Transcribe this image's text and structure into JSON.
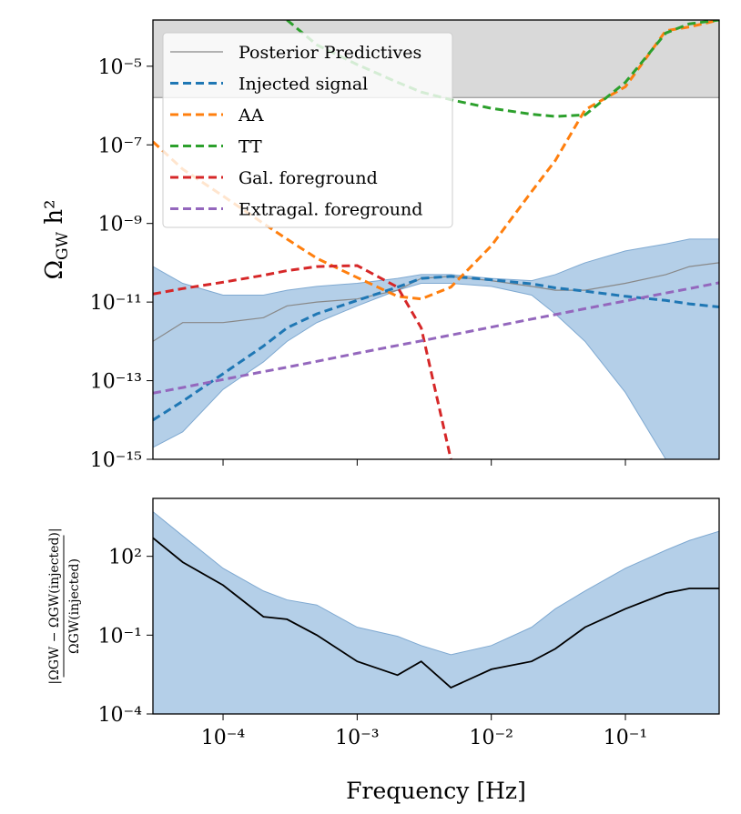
{
  "chart_data": [
    {
      "type": "line",
      "ylabel": [
        "Ω",
        "GW",
        " h²"
      ],
      "xscale": "log",
      "yscale": "log",
      "xlim": [
        3e-05,
        0.5
      ],
      "ylim": [
        1e-15,
        0.00015
      ],
      "xticks": [
        {
          "value": 0.0001,
          "label": "10⁻⁴"
        },
        {
          "value": 0.001,
          "label": "10⁻³"
        },
        {
          "value": 0.01,
          "label": "10⁻²"
        },
        {
          "value": 0.1,
          "label": "10⁻¹"
        }
      ],
      "yticks": [
        {
          "value": 1e-15,
          "label": "10⁻¹⁵"
        },
        {
          "value": 1e-13,
          "label": "10⁻¹³"
        },
        {
          "value": 1e-11,
          "label": "10⁻¹¹"
        },
        {
          "value": 1e-09,
          "label": "10⁻⁹"
        },
        {
          "value": 1e-07,
          "label": "10⁻⁷"
        },
        {
          "value": 1e-05,
          "label": "10⁻⁵"
        }
      ],
      "legend": "upper left",
      "shaded_region": {
        "lower": 1.6e-06,
        "color": "#d9d9d9"
      },
      "x": [
        3e-05,
        5e-05,
        0.0001,
        0.0002,
        0.0003,
        0.0005,
        0.001,
        0.002,
        0.003,
        0.005,
        0.01,
        0.02,
        0.03,
        0.05,
        0.1,
        0.2,
        0.3,
        0.5
      ],
      "band": {
        "color": "#b4cfe8",
        "upper": [
          8e-11,
          3e-11,
          1.5e-11,
          1.5e-11,
          2e-11,
          2.5e-11,
          3e-11,
          4e-11,
          5e-11,
          5e-11,
          4e-11,
          3.5e-11,
          5e-11,
          1e-10,
          2e-10,
          3e-10,
          4e-10,
          4e-10
        ],
        "lower": [
          2e-15,
          5e-15,
          6e-14,
          3e-13,
          1e-12,
          3e-12,
          8e-12,
          2e-11,
          3e-11,
          3e-11,
          2.5e-11,
          1.5e-11,
          5e-12,
          1e-12,
          5e-14,
          1e-15,
          1e-15,
          1e-15
        ]
      },
      "series": [
        {
          "name": "Posterior Predictives",
          "color": "#888888",
          "dashed": false,
          "values": [
            1e-12,
            3e-12,
            3e-12,
            4e-12,
            8e-12,
            1e-11,
            1.2e-11,
            2e-11,
            4e-11,
            4.5e-11,
            3.5e-11,
            2.5e-11,
            2e-11,
            2e-11,
            3e-11,
            5e-11,
            8e-11,
            1e-10
          ]
        },
        {
          "name": "Injected signal",
          "color": "#1f77b4",
          "dashed": true,
          "values": [
            1e-14,
            3e-14,
            1.5e-13,
            7.6e-13,
            2.2e-12,
            5e-12,
            1.1e-11,
            2.4e-11,
            4e-11,
            4.5e-11,
            3.7e-11,
            2.9e-11,
            2.3e-11,
            1.9e-11,
            1.4e-11,
            1.1e-11,
            9e-12,
            7.5e-12
          ]
        },
        {
          "name": "AA",
          "color": "#ff7f0e",
          "dashed": true,
          "values": [
            1.2e-07,
            2.4e-08,
            5e-09,
            1e-09,
            4e-10,
            1.3e-10,
            4.2e-11,
            1.4e-11,
            1.2e-11,
            2.4e-11,
            2.7e-10,
            6.5e-09,
            4e-08,
            7.8e-07,
            3e-06,
            8e-05,
            0.0001,
            0.00015
          ]
        },
        {
          "name": "TT",
          "color": "#2ca02c",
          "dashed": true,
          "values": [
            null,
            null,
            null,
            null,
            0.00015,
            3.5e-05,
            1.1e-05,
            3.9e-06,
            2.2e-06,
            1.4e-06,
            8.5e-07,
            6e-07,
            5.3e-07,
            5.8e-07,
            3.9e-06,
            7e-05,
            0.00012,
            0.00015
          ]
        },
        {
          "name": "Gal. foreground",
          "color": "#d62728",
          "dashed": true,
          "values": [
            1.6e-11,
            2.2e-11,
            3.2e-11,
            4.8e-11,
            6.3e-11,
            8e-11,
            8.5e-11,
            2.4e-11,
            2.2e-12,
            1e-15,
            null,
            null,
            null,
            null,
            null,
            null,
            null,
            null
          ]
        },
        {
          "name": "Extragal. foreground",
          "color": "#9467bd",
          "dashed": true,
          "values": [
            4.8e-14,
            6.7e-14,
            1.07e-13,
            1.7e-13,
            2.2e-13,
            3.1e-13,
            5e-13,
            7.9e-13,
            1.03e-12,
            1.45e-12,
            2.3e-12,
            3.7e-12,
            4.8e-12,
            6.8e-12,
            1.07e-11,
            1.7e-11,
            2.2e-11,
            3.1e-11
          ]
        }
      ]
    },
    {
      "type": "line",
      "ylabel": {
        "numerator": "|ΩGW − ΩGW(injected)|",
        "denominator": "ΩGW(injected)"
      },
      "xlabel": "Frequency [Hz]",
      "xscale": "log",
      "yscale": "log",
      "xlim": [
        3e-05,
        0.5
      ],
      "ylim": [
        0.0001,
        16000.0
      ],
      "xticks": [
        {
          "value": 0.0001,
          "label": "10⁻⁴"
        },
        {
          "value": 0.001,
          "label": "10⁻³"
        },
        {
          "value": 0.01,
          "label": "10⁻²"
        },
        {
          "value": 0.1,
          "label": "10⁻¹"
        }
      ],
      "yticks": [
        {
          "value": 0.0001,
          "label": "10⁻⁴"
        },
        {
          "value": 0.1,
          "label": "10⁻¹"
        },
        {
          "value": 100,
          "label": "10²"
        }
      ],
      "x": [
        3e-05,
        5e-05,
        0.0001,
        0.0002,
        0.0003,
        0.0005,
        0.001,
        0.002,
        0.003,
        0.005,
        0.01,
        0.02,
        0.03,
        0.05,
        0.1,
        0.2,
        0.3,
        0.5
      ],
      "band": {
        "color": "#b4cfe8",
        "upper": [
          5000,
          600,
          35,
          4.8,
          2.2,
          1.4,
          0.2,
          0.09,
          0.04,
          0.018,
          0.04,
          0.2,
          1,
          4.8,
          35,
          170,
          400,
          900
        ]
      },
      "series": [
        {
          "color": "#000000",
          "values": [
            500,
            60,
            8,
            0.5,
            0.4,
            0.1,
            0.01,
            0.003,
            0.01,
            0.001,
            0.005,
            0.01,
            0.03,
            0.2,
            1,
            4,
            6,
            6
          ]
        }
      ]
    }
  ]
}
